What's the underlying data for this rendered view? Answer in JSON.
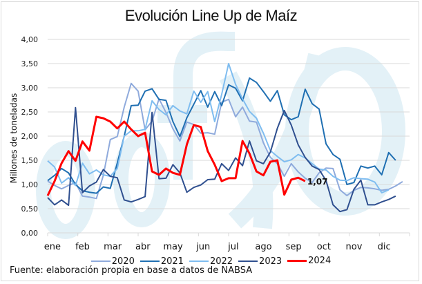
{
  "chart_data": {
    "type": "line",
    "title": "Evolución Line Up de Maíz",
    "xlabel": "",
    "ylabel": "Millones de toneladas",
    "ylim": [
      0,
      4
    ],
    "yticks": [
      "0,00",
      "0,50",
      "1,00",
      "1,50",
      "2,00",
      "2,50",
      "3,00",
      "3,50",
      "4,00"
    ],
    "ytick_values": [
      0,
      0.5,
      1,
      1.5,
      2,
      2.5,
      3,
      3.5,
      4
    ],
    "categories": [
      "ene",
      "feb",
      "mar",
      "abr",
      "may",
      "jun",
      "jul",
      "ago",
      "sep",
      "oct",
      "nov",
      "dic"
    ],
    "x_unit": "week of year (0-52)",
    "xlim": [
      0,
      52
    ],
    "grid": true,
    "legend_position": "bottom",
    "annotation": {
      "series": "2024",
      "label": "1,07"
    },
    "series": [
      {
        "name": "2020",
        "color": "#8faadc",
        "values": [
          1.07,
          0.98,
          0.91,
          0.98,
          1.04,
          0.76,
          0.74,
          0.71,
          1.19,
          1.93,
          1.99,
          2.6,
          3.09,
          2.93,
          2.13,
          2.31,
          2.77,
          2.49,
          2.15,
          1.9,
          2.29,
          2.24,
          2.06,
          2.07,
          2.04,
          2.7,
          2.76,
          2.4,
          2.6,
          2.31,
          2.29,
          1.86,
          1.56,
          1.43,
          1.17,
          1.43,
          1.26,
          1.13,
          1.04,
          1.24,
          1.34,
          1.33,
          0.89,
          0.77,
          0.88,
          0.94,
          0.93,
          0.91,
          0.88,
          0.9,
          0.97,
          1.06
        ]
      },
      {
        "name": "2021",
        "color": "#1f6fb2",
        "values": [
          1.08,
          1.19,
          1.33,
          1.24,
          1.0,
          0.87,
          0.84,
          0.82,
          0.95,
          0.92,
          1.44,
          2.0,
          2.63,
          2.64,
          2.93,
          2.98,
          2.76,
          2.74,
          2.3,
          1.99,
          2.38,
          2.66,
          2.94,
          2.6,
          2.92,
          2.63,
          3.06,
          2.99,
          2.73,
          3.2,
          3.11,
          2.92,
          2.72,
          2.94,
          2.44,
          2.34,
          2.4,
          2.97,
          2.67,
          2.56,
          1.84,
          1.62,
          1.52,
          1.0,
          1.04,
          1.38,
          1.34,
          1.38,
          1.2,
          1.66,
          1.5
        ]
      },
      {
        "name": "2022",
        "color": "#7fbdf0",
        "values": [
          1.49,
          1.36,
          1.03,
          1.14,
          0.98,
          1.44,
          1.22,
          1.3,
          1.2,
          1.17,
          1.33,
          2.0,
          2.11,
          2.11,
          2.14,
          2.73,
          2.55,
          2.44,
          2.63,
          2.52,
          2.46,
          2.93,
          2.7,
          2.92,
          2.3,
          2.86,
          3.5,
          3.07,
          2.77,
          2.51,
          2.37,
          2.06,
          1.7,
          1.58,
          1.47,
          1.51,
          1.62,
          1.55,
          1.43,
          1.32,
          1.3,
          1.17,
          1.09,
          1.08,
          1.14,
          1.12,
          1.11,
          1.05,
          0.83,
          0.89
        ]
      },
      {
        "name": "2023",
        "color": "#2f4f8f",
        "values": [
          0.73,
          0.58,
          0.68,
          0.57,
          2.59,
          0.83,
          0.97,
          1.05,
          1.31,
          1.17,
          1.14,
          0.68,
          0.64,
          0.69,
          0.75,
          2.49,
          1.12,
          1.13,
          1.41,
          1.24,
          0.84,
          0.94,
          0.99,
          1.1,
          1.11,
          1.43,
          1.29,
          1.55,
          1.39,
          1.9,
          1.49,
          1.43,
          1.67,
          2.16,
          2.53,
          2.23,
          1.82,
          1.56,
          1.38,
          1.31,
          1.08,
          0.58,
          0.44,
          0.48,
          0.9,
          1.09,
          0.58,
          0.58,
          0.64,
          0.69,
          0.76
        ]
      },
      {
        "name": "2024",
        "color": "#ff0000",
        "values": [
          0.77,
          1.07,
          1.44,
          1.69,
          1.49,
          1.89,
          1.7,
          2.4,
          2.37,
          2.3,
          2.16,
          2.3,
          2.14,
          2.0,
          2.07,
          1.27,
          1.2,
          1.33,
          1.24,
          1.2,
          1.83,
          2.23,
          2.19,
          1.69,
          1.41,
          1.07,
          1.13,
          1.13,
          1.9,
          1.64,
          1.27,
          1.19,
          1.47,
          1.5,
          0.79,
          1.1,
          1.14,
          1.07
        ]
      }
    ]
  },
  "watermark": "fyo",
  "legend": [
    "2020",
    "2021",
    "2022",
    "2023",
    "2024"
  ],
  "source": "Fuente: elaboración propia en base a datos de NABSA"
}
